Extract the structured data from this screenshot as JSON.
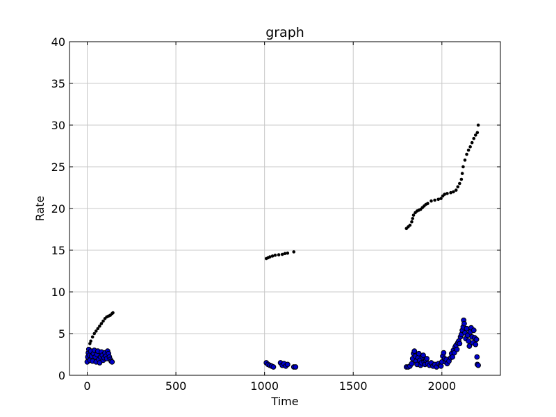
{
  "chart_data": {
    "type": "scatter",
    "title": "graph",
    "xlabel": "Time",
    "ylabel": "Rate",
    "xlim": [
      -100,
      2330
    ],
    "ylim": [
      0,
      40
    ],
    "grid": true,
    "xticks": [
      0,
      500,
      1000,
      1500,
      2000
    ],
    "yticks": [
      0,
      5,
      10,
      15,
      20,
      25,
      30,
      35,
      40
    ],
    "colors": {
      "line_points": "#000000",
      "scatter_fill": "#0000cc",
      "scatter_edge": "#000000",
      "grid": "#c8c8c8"
    },
    "series": [
      {
        "marker": "small-black-dot",
        "points": [
          [
            0,
            2.0
          ],
          [
            5,
            2.6
          ],
          [
            10,
            3.2
          ],
          [
            15,
            3.8
          ],
          [
            20,
            4.1
          ],
          [
            30,
            4.6
          ],
          [
            40,
            5.0
          ],
          [
            50,
            5.3
          ],
          [
            60,
            5.6
          ],
          [
            70,
            5.9
          ],
          [
            80,
            6.2
          ],
          [
            90,
            6.5
          ],
          [
            100,
            6.8
          ],
          [
            110,
            7.0
          ],
          [
            120,
            7.1
          ],
          [
            130,
            7.2
          ],
          [
            140,
            7.4
          ],
          [
            145,
            7.5
          ],
          [
            1010,
            14.0
          ],
          [
            1020,
            14.1
          ],
          [
            1030,
            14.2
          ],
          [
            1045,
            14.3
          ],
          [
            1060,
            14.4
          ],
          [
            1080,
            14.45
          ],
          [
            1100,
            14.5
          ],
          [
            1115,
            14.6
          ],
          [
            1130,
            14.65
          ],
          [
            1165,
            14.8
          ],
          [
            1800,
            17.6
          ],
          [
            1810,
            17.8
          ],
          [
            1820,
            18.0
          ],
          [
            1830,
            18.4
          ],
          [
            1835,
            18.8
          ],
          [
            1840,
            19.2
          ],
          [
            1850,
            19.5
          ],
          [
            1860,
            19.7
          ],
          [
            1870,
            19.8
          ],
          [
            1880,
            19.9
          ],
          [
            1890,
            20.1
          ],
          [
            1900,
            20.3
          ],
          [
            1910,
            20.5
          ],
          [
            1920,
            20.6
          ],
          [
            1940,
            20.9
          ],
          [
            1960,
            21.0
          ],
          [
            1980,
            21.1
          ],
          [
            1995,
            21.2
          ],
          [
            2005,
            21.5
          ],
          [
            2015,
            21.7
          ],
          [
            2030,
            21.8
          ],
          [
            2050,
            21.9
          ],
          [
            2065,
            22.0
          ],
          [
            2080,
            22.2
          ],
          [
            2090,
            22.6
          ],
          [
            2100,
            23.0
          ],
          [
            2110,
            23.5
          ],
          [
            2115,
            24.2
          ],
          [
            2120,
            25.0
          ],
          [
            2130,
            25.8
          ],
          [
            2140,
            26.5
          ],
          [
            2150,
            27.0
          ],
          [
            2160,
            27.4
          ],
          [
            2170,
            27.9
          ],
          [
            2180,
            28.4
          ],
          [
            2190,
            28.8
          ],
          [
            2200,
            29.1
          ],
          [
            2205,
            30.0
          ]
        ]
      },
      {
        "marker": "blue-circle",
        "points": [
          [
            0,
            1.6
          ],
          [
            3,
            2.2
          ],
          [
            6,
            2.7
          ],
          [
            9,
            3.1
          ],
          [
            12,
            2.4
          ],
          [
            15,
            1.8
          ],
          [
            20,
            2.9
          ],
          [
            25,
            2.3
          ],
          [
            30,
            1.7
          ],
          [
            35,
            2.6
          ],
          [
            40,
            3.0
          ],
          [
            45,
            2.2
          ],
          [
            50,
            1.6
          ],
          [
            55,
            2.5
          ],
          [
            60,
            2.9
          ],
          [
            65,
            1.9
          ],
          [
            70,
            1.5
          ],
          [
            75,
            2.2
          ],
          [
            80,
            2.8
          ],
          [
            85,
            2.4
          ],
          [
            90,
            1.8
          ],
          [
            95,
            2.1
          ],
          [
            100,
            2.7
          ],
          [
            105,
            2.3
          ],
          [
            110,
            2.0
          ],
          [
            115,
            2.9
          ],
          [
            120,
            2.6
          ],
          [
            125,
            2.2
          ],
          [
            130,
            1.9
          ],
          [
            135,
            1.7
          ],
          [
            140,
            1.6
          ],
          [
            1010,
            1.5
          ],
          [
            1020,
            1.3
          ],
          [
            1030,
            1.2
          ],
          [
            1040,
            1.1
          ],
          [
            1050,
            1.0
          ],
          [
            1090,
            1.5
          ],
          [
            1100,
            1.2
          ],
          [
            1110,
            1.4
          ],
          [
            1120,
            1.1
          ],
          [
            1130,
            1.3
          ],
          [
            1165,
            1.0
          ],
          [
            1175,
            1.0
          ],
          [
            1800,
            1.0
          ],
          [
            1810,
            1.0
          ],
          [
            1820,
            1.1
          ],
          [
            1830,
            1.4
          ],
          [
            1835,
            2.0
          ],
          [
            1840,
            2.6
          ],
          [
            1845,
            2.9
          ],
          [
            1850,
            2.3
          ],
          [
            1855,
            1.7
          ],
          [
            1860,
            1.3
          ],
          [
            1865,
            2.1
          ],
          [
            1870,
            2.6
          ],
          [
            1875,
            1.8
          ],
          [
            1880,
            1.2
          ],
          [
            1885,
            1.5
          ],
          [
            1890,
            2.2
          ],
          [
            1895,
            2.4
          ],
          [
            1900,
            1.6
          ],
          [
            1905,
            1.3
          ],
          [
            1910,
            1.8
          ],
          [
            1915,
            2.0
          ],
          [
            1920,
            1.4
          ],
          [
            1930,
            1.2
          ],
          [
            1940,
            1.5
          ],
          [
            1950,
            1.1
          ],
          [
            1960,
            1.3
          ],
          [
            1970,
            1.0
          ],
          [
            1980,
            1.4
          ],
          [
            1990,
            1.2
          ],
          [
            1995,
            1.1
          ],
          [
            2000,
            1.6
          ],
          [
            2005,
            2.3
          ],
          [
            2010,
            2.7
          ],
          [
            2015,
            2.0
          ],
          [
            2020,
            1.6
          ],
          [
            2025,
            1.9
          ],
          [
            2030,
            1.4
          ],
          [
            2040,
            1.7
          ],
          [
            2050,
            2.1
          ],
          [
            2055,
            2.6
          ],
          [
            2060,
            2.2
          ],
          [
            2065,
            3.0
          ],
          [
            2070,
            2.7
          ],
          [
            2075,
            3.4
          ],
          [
            2080,
            3.6
          ],
          [
            2085,
            3.1
          ],
          [
            2090,
            3.9
          ],
          [
            2095,
            4.1
          ],
          [
            2100,
            3.8
          ],
          [
            2105,
            4.6
          ],
          [
            2110,
            4.9
          ],
          [
            2115,
            5.4
          ],
          [
            2120,
            5.8
          ],
          [
            2123,
            6.6
          ],
          [
            2126,
            6.2
          ],
          [
            2130,
            5.1
          ],
          [
            2135,
            4.4
          ],
          [
            2140,
            5.6
          ],
          [
            2145,
            4.8
          ],
          [
            2150,
            4.1
          ],
          [
            2155,
            3.5
          ],
          [
            2160,
            5.2
          ],
          [
            2165,
            5.7
          ],
          [
            2170,
            4.6
          ],
          [
            2175,
            3.9
          ],
          [
            2180,
            5.4
          ],
          [
            2185,
            4.5
          ],
          [
            2190,
            3.7
          ],
          [
            2195,
            4.3
          ],
          [
            2198,
            2.2
          ],
          [
            2200,
            1.3
          ],
          [
            2205,
            1.2
          ]
        ]
      }
    ]
  }
}
